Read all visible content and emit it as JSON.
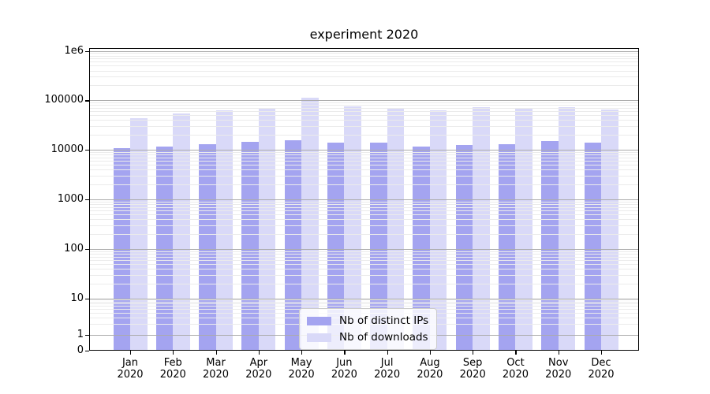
{
  "chart_data": {
    "type": "bar",
    "title": "experiment 2020",
    "yscale": "symlog",
    "grid": true,
    "legend_position": "lower center",
    "categories": [
      "Jan",
      "Feb",
      "Mar",
      "Apr",
      "May",
      "Jun",
      "Jul",
      "Aug",
      "Sep",
      "Oct",
      "Nov",
      "Dec"
    ],
    "category_year": "2020",
    "series": [
      {
        "name": "Nb of distinct IPs",
        "color": "#a4a4f0",
        "values": [
          10700,
          11800,
          13000,
          14700,
          15800,
          14000,
          14200,
          11900,
          12500,
          13300,
          14900,
          14200
        ]
      },
      {
        "name": "Nb of downloads",
        "color": "#d9d9f8",
        "values": [
          44000,
          55000,
          62000,
          69000,
          115000,
          75000,
          70000,
          62000,
          73000,
          71000,
          72000,
          66000
        ]
      }
    ],
    "y_ticks": [
      {
        "label": "1e6",
        "value": 1000000
      },
      {
        "label": "100000",
        "value": 100000
      },
      {
        "label": "10000",
        "value": 10000
      },
      {
        "label": "1000",
        "value": 1000
      },
      {
        "label": "100",
        "value": 100
      },
      {
        "label": "10",
        "value": 10
      },
      {
        "label": "1",
        "value": 1
      },
      {
        "label": "0",
        "value": 0
      }
    ],
    "ylim": [
      0,
      1200000
    ],
    "colors": {
      "major_grid": "#ababab",
      "minor_grid": "#ebebeb",
      "axis": "#000000"
    }
  }
}
